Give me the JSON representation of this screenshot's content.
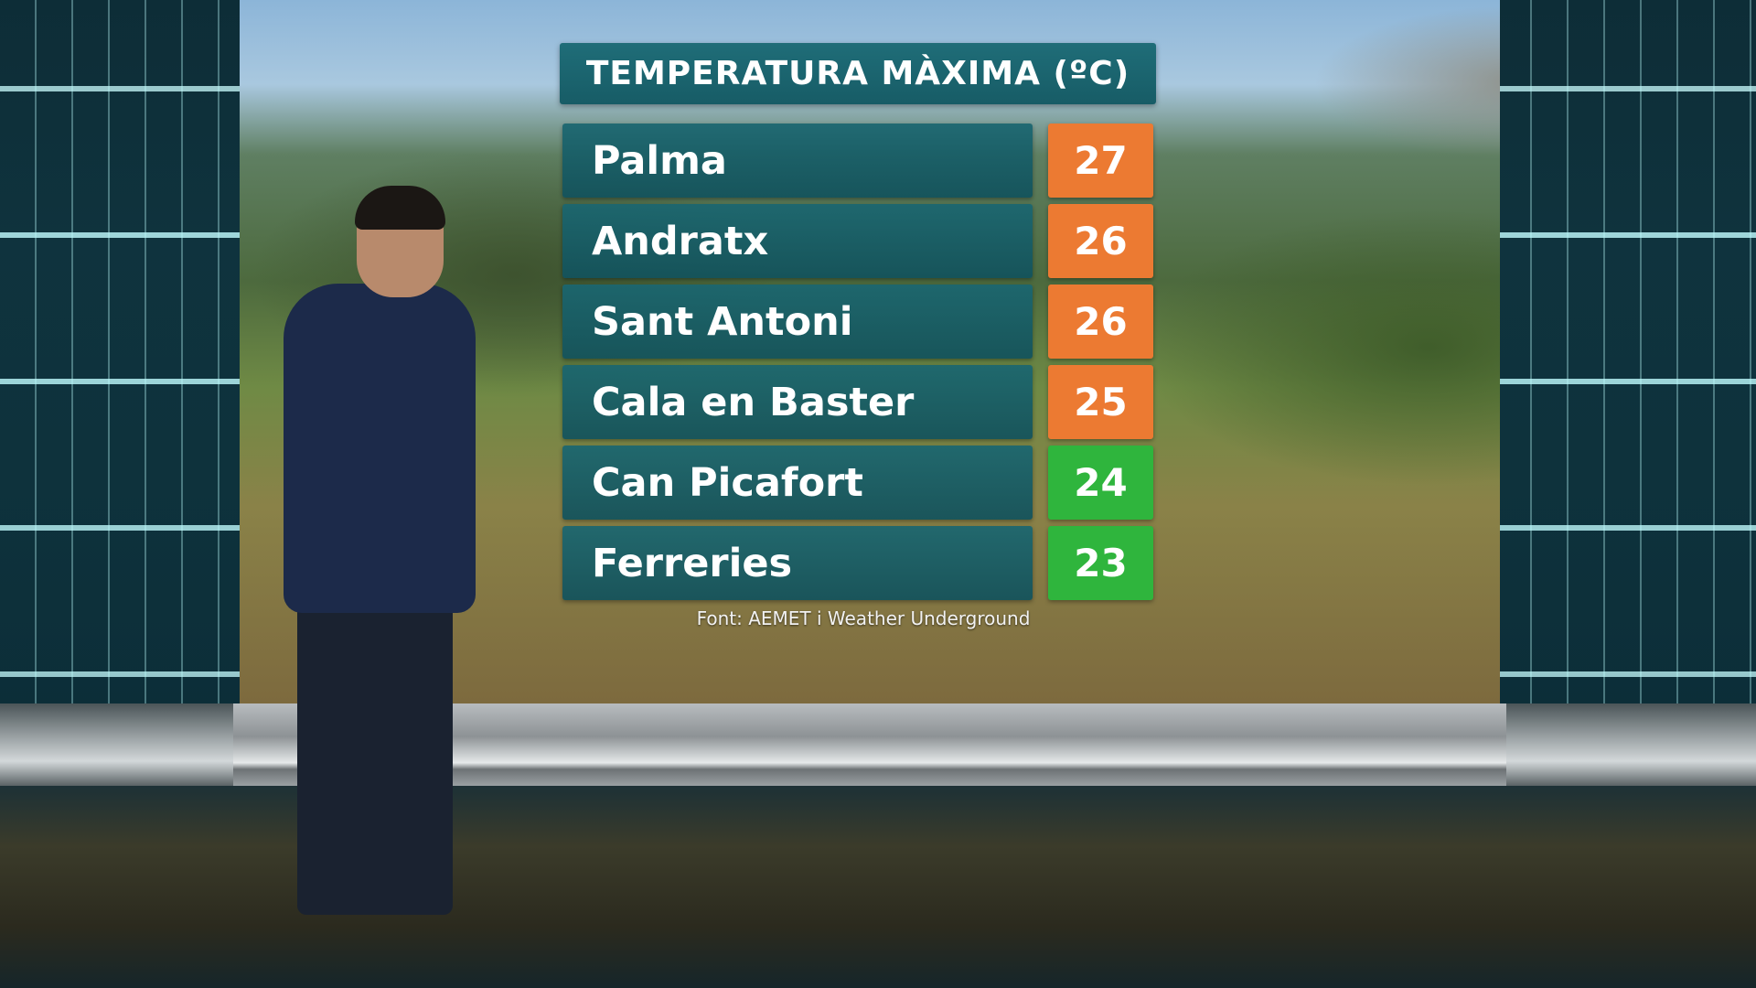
{
  "panel": {
    "title": "TEMPERATURA MÀXIMA (ºC)",
    "rows": [
      {
        "name": "Palma",
        "value": "27",
        "color": "#ec7a32"
      },
      {
        "name": "Andratx",
        "value": "26",
        "color": "#ec7a32"
      },
      {
        "name": "Sant Antoni",
        "value": "26",
        "color": "#ec7a32"
      },
      {
        "name": "Cala en Baster",
        "value": "25",
        "color": "#ec7a32"
      },
      {
        "name": "Can Picafort",
        "value": "24",
        "color": "#2fb53d"
      },
      {
        "name": "Ferreries",
        "value": "23",
        "color": "#2fb53d"
      }
    ],
    "source": "Font: AEMET i Weather Underground"
  }
}
